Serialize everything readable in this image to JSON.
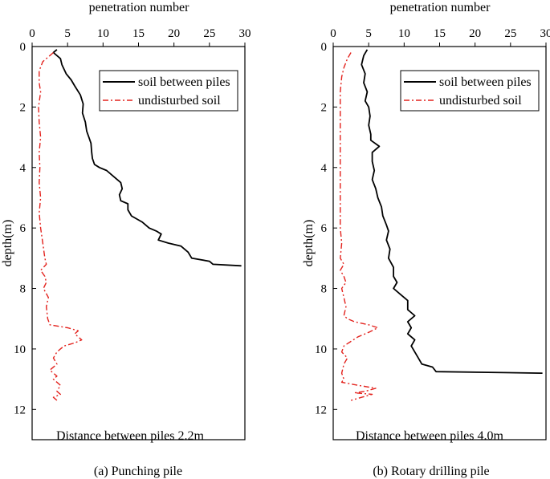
{
  "figure": {
    "captions": [
      "(a)    Punching pile",
      "(b) Rotary drilling pile"
    ]
  },
  "chart_data": [
    {
      "type": "line",
      "x_label": "penetration number",
      "y_label": "depth(m)",
      "xlim": [
        0,
        30
      ],
      "ylim": [
        0,
        13
      ],
      "y_inverted": true,
      "x_ticks": [
        "0",
        "5",
        "10",
        "15",
        "20",
        "25",
        "30"
      ],
      "y_ticks": [
        "0",
        "2",
        "4",
        "6",
        "8",
        "10",
        "12"
      ],
      "legend": [
        "soil between piles",
        "undisturbed soil"
      ],
      "legend_position": "top-right",
      "annotation": "Distance between piles 2.2m",
      "caption": "(a)    Punching pile",
      "series": [
        {
          "name": "soil between piles",
          "color": "#000000",
          "style": "solid",
          "points": [
            [
              3.5,
              0.1
            ],
            [
              3.0,
              0.2
            ],
            [
              4.0,
              0.4
            ],
            [
              4.2,
              0.6
            ],
            [
              4.8,
              0.9
            ],
            [
              5.5,
              1.1
            ],
            [
              6.0,
              1.3
            ],
            [
              6.8,
              1.6
            ],
            [
              7.2,
              1.9
            ],
            [
              7.1,
              2.2
            ],
            [
              7.5,
              2.5
            ],
            [
              7.7,
              2.8
            ],
            [
              8.0,
              3.0
            ],
            [
              8.3,
              3.2
            ],
            [
              8.4,
              3.5
            ],
            [
              8.5,
              3.7
            ],
            [
              8.8,
              3.9
            ],
            [
              9.5,
              4.0
            ],
            [
              10.5,
              4.1
            ],
            [
              11.5,
              4.3
            ],
            [
              12.5,
              4.5
            ],
            [
              12.7,
              4.7
            ],
            [
              12.3,
              4.9
            ],
            [
              12.5,
              5.1
            ],
            [
              13.5,
              5.2
            ],
            [
              13.5,
              5.4
            ],
            [
              14.0,
              5.6
            ],
            [
              15.5,
              5.8
            ],
            [
              16.5,
              6.0
            ],
            [
              17.5,
              6.1
            ],
            [
              18.2,
              6.2
            ],
            [
              17.8,
              6.4
            ],
            [
              19.2,
              6.5
            ],
            [
              21.0,
              6.6
            ],
            [
              22.0,
              6.8
            ],
            [
              22.5,
              7.0
            ],
            [
              25.0,
              7.1
            ],
            [
              25.5,
              7.2
            ],
            [
              29.5,
              7.25
            ]
          ]
        },
        {
          "name": "undisturbed soil",
          "color": "#e3221d",
          "style": "dashdot",
          "points": [
            [
              3.0,
              0.2
            ],
            [
              2.5,
              0.3
            ],
            [
              1.5,
              0.5
            ],
            [
              1.0,
              0.8
            ],
            [
              1.0,
              1.2
            ],
            [
              1.2,
              1.5
            ],
            [
              0.9,
              2.0
            ],
            [
              1.0,
              2.5
            ],
            [
              1.2,
              3.0
            ],
            [
              1.0,
              3.5
            ],
            [
              1.1,
              4.0
            ],
            [
              1.0,
              4.5
            ],
            [
              1.2,
              5.0
            ],
            [
              1.0,
              5.5
            ],
            [
              1.2,
              6.0
            ],
            [
              1.5,
              6.5
            ],
            [
              1.8,
              7.0
            ],
            [
              2.0,
              7.2
            ],
            [
              1.2,
              7.4
            ],
            [
              1.8,
              7.6
            ],
            [
              2.0,
              7.8
            ],
            [
              1.6,
              8.0
            ],
            [
              2.3,
              8.3
            ],
            [
              2.0,
              8.6
            ],
            [
              2.2,
              9.0
            ],
            [
              2.5,
              9.2
            ],
            [
              5.0,
              9.3
            ],
            [
              6.5,
              9.4
            ],
            [
              6.0,
              9.5
            ],
            [
              6.5,
              9.6
            ],
            [
              7.0,
              9.7
            ],
            [
              6.0,
              9.8
            ],
            [
              4.5,
              9.9
            ],
            [
              4.0,
              10.0
            ],
            [
              3.5,
              10.1
            ],
            [
              3.0,
              10.3
            ],
            [
              3.5,
              10.5
            ],
            [
              2.5,
              10.7
            ],
            [
              3.5,
              10.9
            ],
            [
              3.0,
              11.0
            ],
            [
              4.0,
              11.2
            ],
            [
              3.5,
              11.4
            ],
            [
              4.0,
              11.5
            ],
            [
              3.0,
              11.6
            ],
            [
              3.5,
              11.7
            ]
          ]
        }
      ]
    },
    {
      "type": "line",
      "x_label": "penetration number",
      "y_label": "depth(m)",
      "xlim": [
        0,
        30
      ],
      "ylim": [
        0,
        13
      ],
      "y_inverted": true,
      "x_ticks": [
        "0",
        "5",
        "10",
        "15",
        "20",
        "25",
        "30"
      ],
      "y_ticks": [
        "0",
        "2",
        "4",
        "6",
        "8",
        "10",
        "12"
      ],
      "legend": [
        "soil between piles",
        "undisturbed soil"
      ],
      "legend_position": "top-right",
      "annotation": "Distance between piles 4.0m",
      "caption": "(b) Rotary drilling pile",
      "series": [
        {
          "name": "soil between piles",
          "color": "#000000",
          "style": "solid",
          "points": [
            [
              4.8,
              0.1
            ],
            [
              4.3,
              0.3
            ],
            [
              4.0,
              0.6
            ],
            [
              4.5,
              0.9
            ],
            [
              4.3,
              1.2
            ],
            [
              4.8,
              1.5
            ],
            [
              4.5,
              1.8
            ],
            [
              5.0,
              2.0
            ],
            [
              5.2,
              2.3
            ],
            [
              5.0,
              2.6
            ],
            [
              5.3,
              2.9
            ],
            [
              5.3,
              3.1
            ],
            [
              6.5,
              3.3
            ],
            [
              5.5,
              3.5
            ],
            [
              5.5,
              3.8
            ],
            [
              5.8,
              4.1
            ],
            [
              5.5,
              4.4
            ],
            [
              6.0,
              4.7
            ],
            [
              6.3,
              5.0
            ],
            [
              6.8,
              5.3
            ],
            [
              7.0,
              5.6
            ],
            [
              7.5,
              5.9
            ],
            [
              7.8,
              6.1
            ],
            [
              7.5,
              6.4
            ],
            [
              8.0,
              6.7
            ],
            [
              7.8,
              7.0
            ],
            [
              8.5,
              7.3
            ],
            [
              8.5,
              7.6
            ],
            [
              9.0,
              7.8
            ],
            [
              8.5,
              8.0
            ],
            [
              9.5,
              8.2
            ],
            [
              10.5,
              8.4
            ],
            [
              10.5,
              8.7
            ],
            [
              11.5,
              8.9
            ],
            [
              10.5,
              9.1
            ],
            [
              11.0,
              9.3
            ],
            [
              10.5,
              9.5
            ],
            [
              11.5,
              9.7
            ],
            [
              11.0,
              9.9
            ],
            [
              11.5,
              10.1
            ],
            [
              12.0,
              10.3
            ],
            [
              12.5,
              10.5
            ],
            [
              14.0,
              10.6
            ],
            [
              14.5,
              10.75
            ],
            [
              29.5,
              10.8
            ]
          ]
        },
        {
          "name": "undisturbed soil",
          "color": "#e3221d",
          "style": "dashdot",
          "points": [
            [
              2.5,
              0.2
            ],
            [
              2.0,
              0.4
            ],
            [
              1.5,
              0.7
            ],
            [
              1.2,
              1.0
            ],
            [
              1.0,
              1.5
            ],
            [
              1.0,
              2.0
            ],
            [
              1.0,
              2.5
            ],
            [
              1.0,
              3.0
            ],
            [
              1.0,
              3.5
            ],
            [
              1.0,
              4.0
            ],
            [
              1.0,
              4.5
            ],
            [
              1.0,
              5.0
            ],
            [
              1.0,
              5.5
            ],
            [
              1.0,
              6.0
            ],
            [
              1.2,
              6.5
            ],
            [
              1.0,
              7.0
            ],
            [
              1.5,
              7.2
            ],
            [
              1.0,
              7.4
            ],
            [
              1.5,
              7.6
            ],
            [
              1.8,
              7.8
            ],
            [
              1.2,
              8.0
            ],
            [
              1.5,
              8.3
            ],
            [
              1.8,
              8.6
            ],
            [
              1.5,
              8.9
            ],
            [
              2.0,
              9.0
            ],
            [
              3.0,
              9.1
            ],
            [
              5.0,
              9.2
            ],
            [
              6.3,
              9.3
            ],
            [
              5.0,
              9.45
            ],
            [
              3.5,
              9.6
            ],
            [
              2.5,
              9.75
            ],
            [
              1.5,
              9.9
            ],
            [
              1.2,
              10.1
            ],
            [
              2.0,
              10.3
            ],
            [
              1.5,
              10.5
            ],
            [
              1.2,
              10.8
            ],
            [
              1.5,
              11.0
            ],
            [
              1.2,
              11.1
            ],
            [
              3.5,
              11.2
            ],
            [
              6.0,
              11.3
            ],
            [
              4.5,
              11.4
            ],
            [
              3.0,
              11.45
            ],
            [
              5.5,
              11.5
            ],
            [
              4.0,
              11.6
            ],
            [
              2.5,
              11.7
            ]
          ]
        }
      ]
    }
  ]
}
